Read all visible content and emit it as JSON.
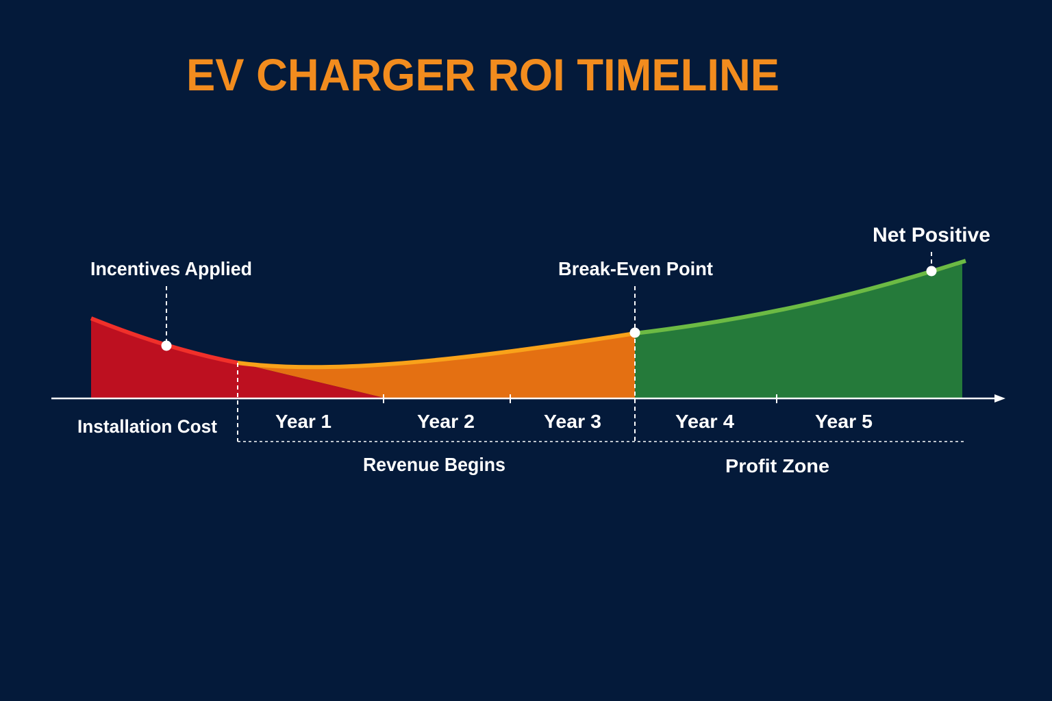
{
  "title": "EV CHARGER ROI TIMELINE",
  "colors": {
    "background": "#041a3a",
    "title": "#f28c1e",
    "cost": "#bd1020",
    "cost_line": "#f0302a",
    "revenue": "#e47012",
    "revenue_line": "#f9a21a",
    "profit": "#257a3a",
    "profit_line": "#6cba44",
    "axis": "#ffffff"
  },
  "annotations": {
    "incentives": "Incentives Applied",
    "break_even": "Break-Even Point",
    "net_positive": "Net Positive"
  },
  "axis_labels": {
    "installation": "Installation Cost",
    "years": [
      "Year 1",
      "Year 2",
      "Year 3",
      "Year 4",
      "Year 5"
    ]
  },
  "phases": {
    "revenue": "Revenue Begins",
    "profit": "Profit Zone"
  }
}
